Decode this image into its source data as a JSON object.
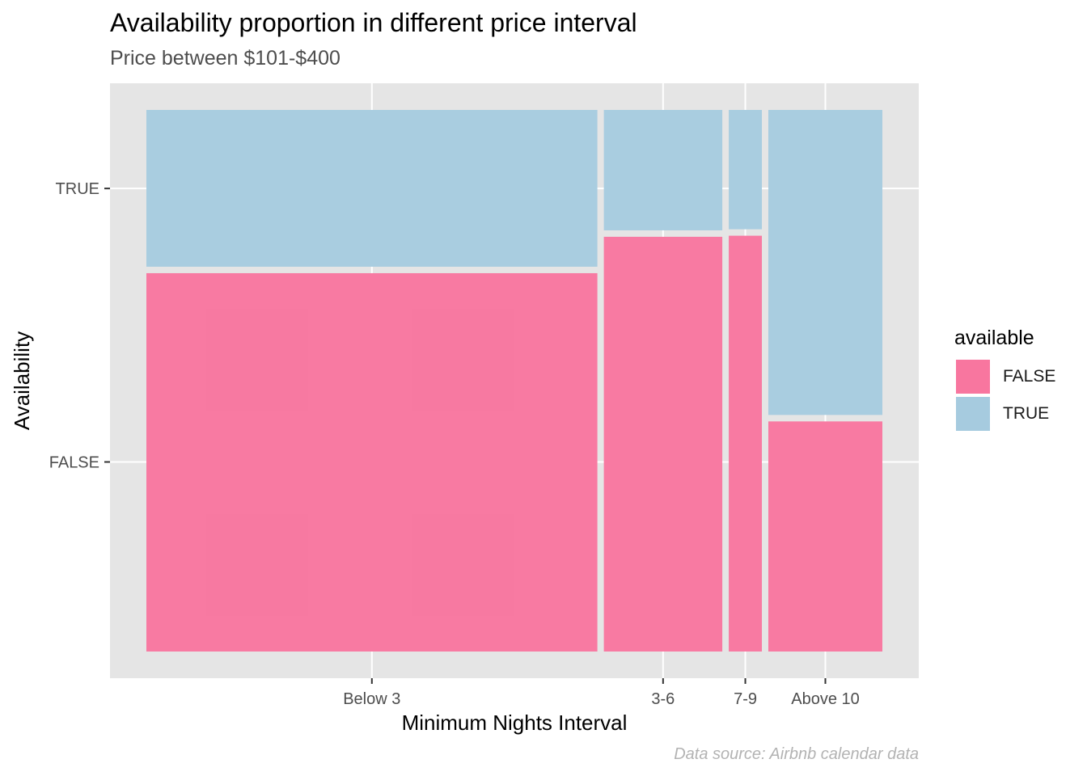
{
  "chart_data": {
    "type": "mosaic",
    "title": "Availability proportion in different price interval",
    "subtitle": "Price between $101-$400",
    "caption": "Data source: Airbnb calendar data",
    "xlabel": "Minimum Nights Interval",
    "ylabel": "Availability",
    "categories": [
      "Below 3",
      "3-6",
      "7-9",
      "Above 10"
    ],
    "category_share": [
      0.613,
      0.161,
      0.045,
      0.155
    ],
    "y_levels": [
      "FALSE",
      "TRUE"
    ],
    "series": [
      {
        "name": "FALSE",
        "color": "#f8769f",
        "values": [
          0.707,
          0.775,
          0.777,
          0.43
        ]
      },
      {
        "name": "TRUE",
        "color": "#a6cbdf",
        "values": [
          0.293,
          0.225,
          0.223,
          0.57
        ]
      }
    ],
    "legend": {
      "title": "available",
      "position": "right"
    },
    "panel_background": "#e5e5e5",
    "grid_color": "#ffffff",
    "grid": true
  }
}
